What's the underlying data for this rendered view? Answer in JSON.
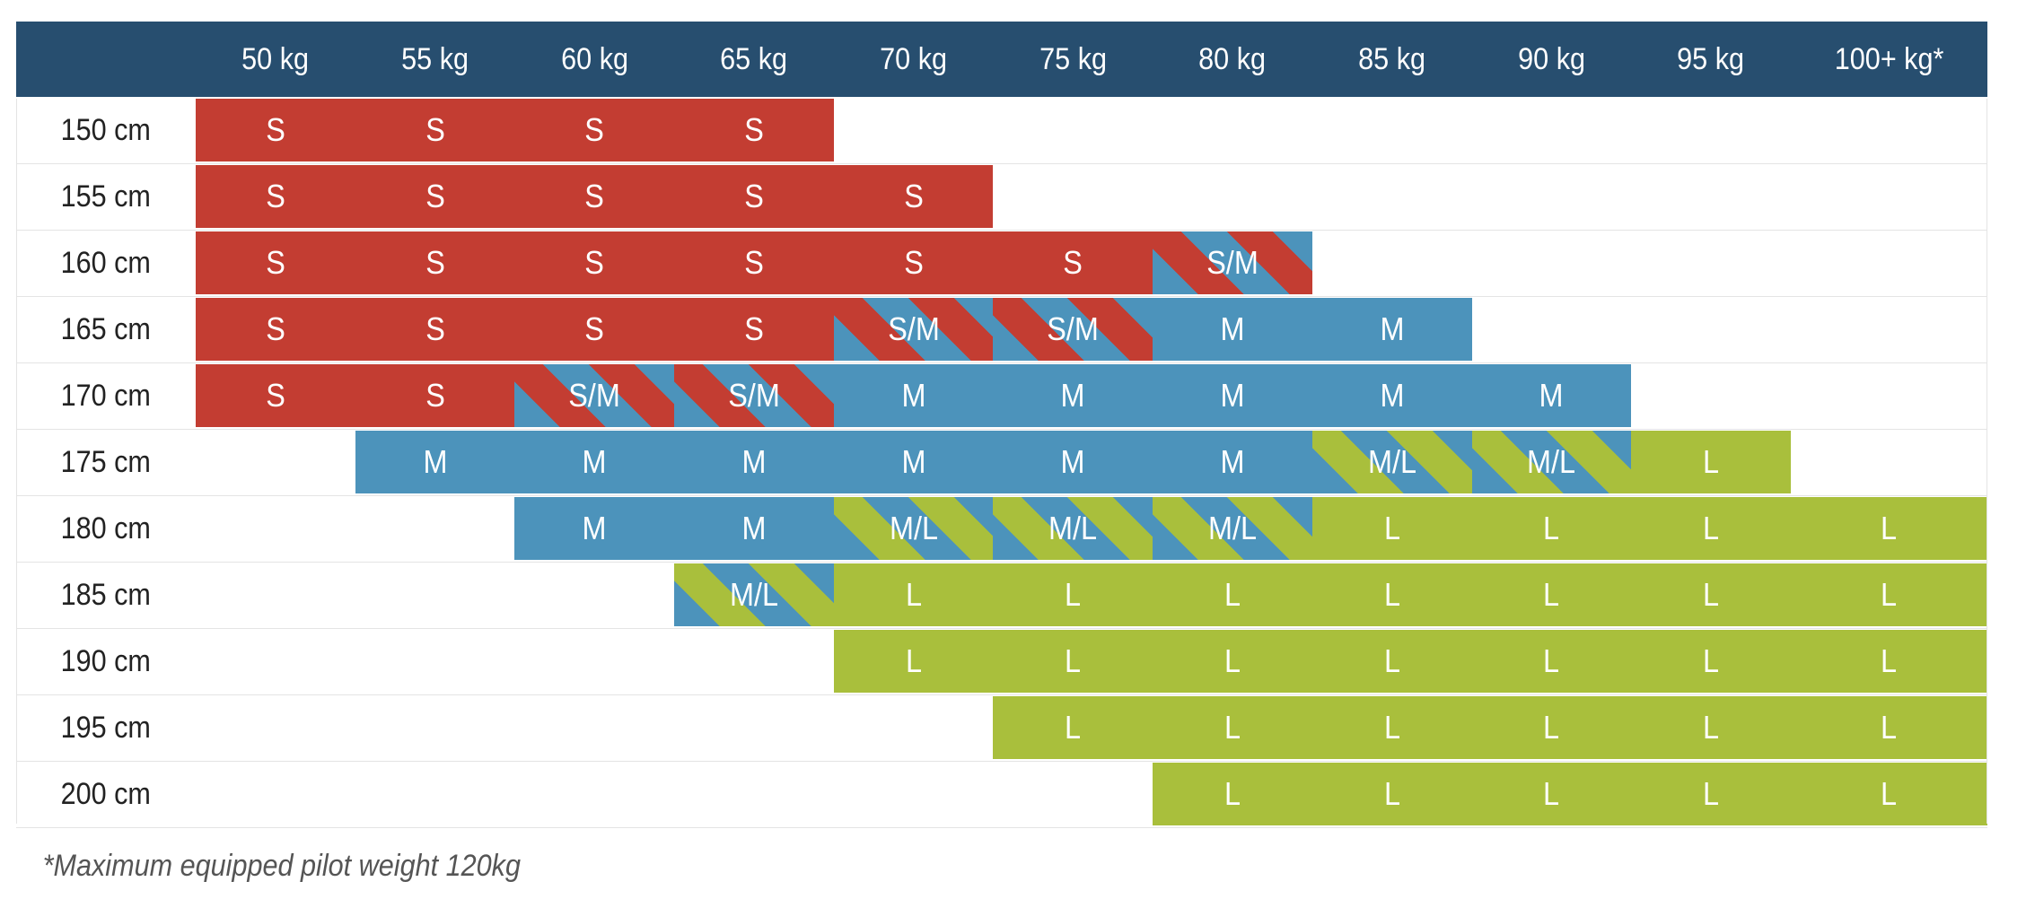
{
  "table": {
    "corner_label": "",
    "weight_headers": [
      "50 kg",
      "55 kg",
      "60 kg",
      "65 kg",
      "70 kg",
      "75 kg",
      "80 kg",
      "85 kg",
      "90 kg",
      "95 kg",
      "100+ kg*"
    ],
    "rows": [
      {
        "height": "150 cm",
        "cells": [
          "S",
          "S",
          "S",
          "S",
          "",
          "",
          "",
          "",
          "",
          "",
          ""
        ]
      },
      {
        "height": "155 cm",
        "cells": [
          "S",
          "S",
          "S",
          "S",
          "S",
          "",
          "",
          "",
          "",
          "",
          ""
        ]
      },
      {
        "height": "160 cm",
        "cells": [
          "S",
          "S",
          "S",
          "S",
          "S",
          "S",
          "S/M",
          "",
          "",
          "",
          ""
        ]
      },
      {
        "height": "165 cm",
        "cells": [
          "S",
          "S",
          "S",
          "S",
          "S/M",
          "S/M",
          "M",
          "M",
          "",
          "",
          ""
        ]
      },
      {
        "height": "170 cm",
        "cells": [
          "S",
          "S",
          "S/M",
          "S/M",
          "M",
          "M",
          "M",
          "M",
          "M",
          "",
          ""
        ]
      },
      {
        "height": "175 cm",
        "cells": [
          "",
          "M",
          "M",
          "M",
          "M",
          "M",
          "M",
          "M/L",
          "M/L",
          "L",
          ""
        ]
      },
      {
        "height": "180 cm",
        "cells": [
          "",
          "",
          "M",
          "M",
          "M/L",
          "M/L",
          "M/L",
          "L",
          "L",
          "L",
          "L"
        ]
      },
      {
        "height": "185 cm",
        "cells": [
          "",
          "",
          "",
          "M/L",
          "L",
          "L",
          "L",
          "L",
          "L",
          "L",
          "L"
        ]
      },
      {
        "height": "190 cm",
        "cells": [
          "",
          "",
          "",
          "",
          "L",
          "L",
          "L",
          "L",
          "L",
          "L",
          "L"
        ]
      },
      {
        "height": "195 cm",
        "cells": [
          "",
          "",
          "",
          "",
          "",
          "L",
          "L",
          "L",
          "L",
          "L",
          "L"
        ]
      },
      {
        "height": "200 cm",
        "cells": [
          "",
          "",
          "",
          "",
          "",
          "",
          "L",
          "L",
          "L",
          "L",
          "L"
        ]
      }
    ]
  },
  "footnote": {
    "text": "*Maximum equipped pilot weight 120kg"
  },
  "colors": {
    "header_navy": "#274e6f",
    "size_s_red": "#c33d32",
    "size_m_blue": "#4c93bb",
    "size_l_green": "#a9bf3c",
    "hairline": "#e4e4e4",
    "label_text": "#222222",
    "cell_text": "#ffffff",
    "footnote_text": "#555555"
  },
  "chart_data": {
    "type": "table",
    "title": "Pilot size chart by height and weight",
    "x_categories": [
      "50 kg",
      "55 kg",
      "60 kg",
      "65 kg",
      "70 kg",
      "75 kg",
      "80 kg",
      "85 kg",
      "90 kg",
      "95 kg",
      "100+ kg*"
    ],
    "y_categories": [
      "150 cm",
      "155 cm",
      "160 cm",
      "165 cm",
      "170 cm",
      "175 cm",
      "180 cm",
      "185 cm",
      "190 cm",
      "195 cm",
      "200 cm"
    ],
    "values": [
      [
        "S",
        "S",
        "S",
        "S",
        "",
        "",
        "",
        "",
        "",
        "",
        ""
      ],
      [
        "S",
        "S",
        "S",
        "S",
        "S",
        "",
        "",
        "",
        "",
        "",
        ""
      ],
      [
        "S",
        "S",
        "S",
        "S",
        "S",
        "S",
        "S/M",
        "",
        "",
        "",
        ""
      ],
      [
        "S",
        "S",
        "S",
        "S",
        "S/M",
        "S/M",
        "M",
        "M",
        "",
        "",
        ""
      ],
      [
        "S",
        "S",
        "S/M",
        "S/M",
        "M",
        "M",
        "M",
        "M",
        "M",
        "",
        ""
      ],
      [
        "",
        "M",
        "M",
        "M",
        "M",
        "M",
        "M",
        "M/L",
        "M/L",
        "L",
        ""
      ],
      [
        "",
        "",
        "M",
        "M",
        "M/L",
        "M/L",
        "M/L",
        "L",
        "L",
        "L",
        "L"
      ],
      [
        "",
        "",
        "",
        "M/L",
        "L",
        "L",
        "L",
        "L",
        "L",
        "L",
        "L"
      ],
      [
        "",
        "",
        "",
        "",
        "L",
        "L",
        "L",
        "L",
        "L",
        "L",
        "L"
      ],
      [
        "",
        "",
        "",
        "",
        "",
        "L",
        "L",
        "L",
        "L",
        "L",
        "L"
      ],
      [
        "",
        "",
        "",
        "",
        "",
        "",
        "L",
        "L",
        "L",
        "L",
        "L"
      ]
    ],
    "legend": {
      "S": "solid red",
      "S/M": "red-blue diagonal stripes",
      "M": "solid blue",
      "M/L": "blue-green diagonal stripes",
      "L": "solid green"
    },
    "annotations": [
      "*Maximum equipped pilot weight 120kg"
    ],
    "grid": "light gray hairlines between rows"
  }
}
